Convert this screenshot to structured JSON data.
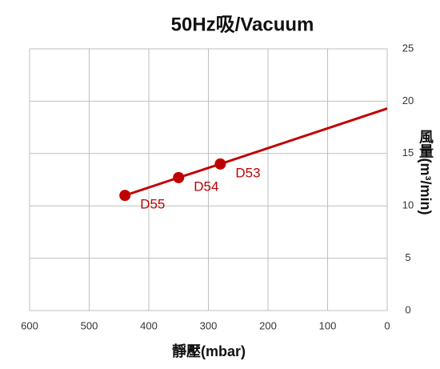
{
  "chart_data": {
    "type": "line",
    "title": "50Hz吸/Vacuum",
    "x_label": "靜壓(mbar)",
    "y_label": "風量(m³/min)",
    "x": [
      440,
      350,
      280,
      0
    ],
    "series": [
      {
        "name": "Vacuum",
        "color": "#c00000",
        "values": [
          11,
          12.7,
          14,
          19.3
        ],
        "point_labels": [
          "D55",
          "D54",
          "D53",
          null
        ]
      }
    ],
    "xlim": [
      600,
      0
    ],
    "xticks": [
      600,
      500,
      400,
      300,
      200,
      100,
      0
    ],
    "ylim": [
      0,
      25
    ],
    "yticks": [
      0,
      5,
      10,
      15,
      20,
      25
    ],
    "y_axis_side": "right",
    "grid": true
  }
}
